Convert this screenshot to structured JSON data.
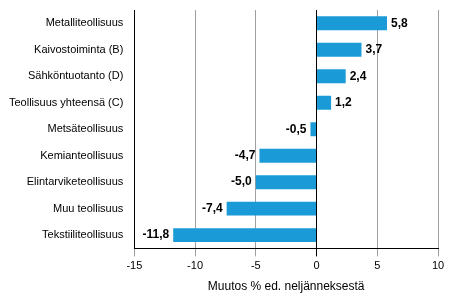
{
  "chart_data": {
    "type": "bar",
    "orientation": "horizontal",
    "x_label": "Muutos % ed. neljänneksestä",
    "categories": [
      "Metalliteollisuus",
      "Kaivostoiminta (B)",
      "Sähköntuotanto (D)",
      "Teollisuus yhteensä (C)",
      "Metsäteollisuus",
      "Kemianteollisuus",
      "Elintarviketeollisuus",
      "Muu teollisuus",
      "Tekstiiliteollisuus"
    ],
    "values": [
      5.8,
      3.7,
      2.4,
      1.2,
      -0.5,
      -4.7,
      -5.0,
      -7.4,
      -11.8
    ],
    "value_labels": [
      "5,8",
      "3,7",
      "2,4",
      "1,2",
      "-0,5",
      "-4,7",
      "-5,0",
      "-7,4",
      "-11,8"
    ],
    "data_labels": true,
    "color": "#1a9ad7",
    "xlim": [
      -15,
      10
    ],
    "xticks": [
      -15,
      -10,
      -5,
      0,
      5,
      10
    ],
    "grid": true
  }
}
